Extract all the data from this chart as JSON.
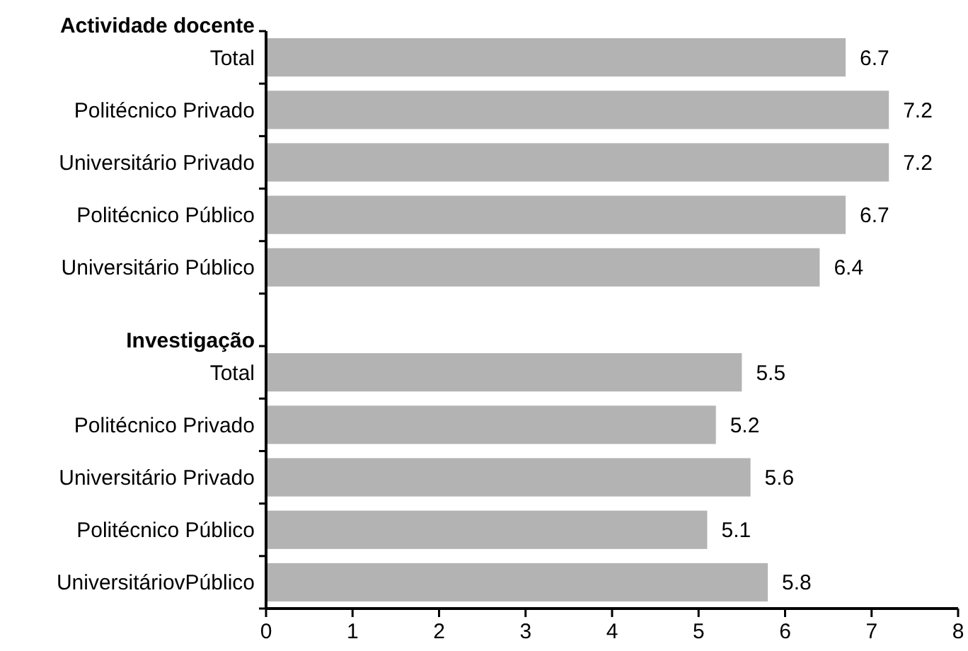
{
  "chart_data": {
    "type": "bar",
    "orientation": "horizontal",
    "categories": [
      "Total",
      "Politécnico Privado",
      "Universitário Privado",
      "Politécnico Público",
      "Universitário Público",
      null,
      "Total",
      "Politécnico Privado",
      "Universitário Privado",
      "Politécnico Público",
      "UniversitáriovPúblico"
    ],
    "values": [
      6.7,
      7.2,
      7.2,
      6.7,
      6.4,
      null,
      5.5,
      5.2,
      5.6,
      5.1,
      5.8
    ],
    "color": "#b3b3b3",
    "xlim": [
      0,
      8
    ],
    "xticks": [
      0,
      1,
      2,
      3,
      4,
      5,
      6,
      7,
      8
    ],
    "data_labels": true,
    "annotations": [
      "Actividade docente",
      "Investigação"
    ]
  }
}
